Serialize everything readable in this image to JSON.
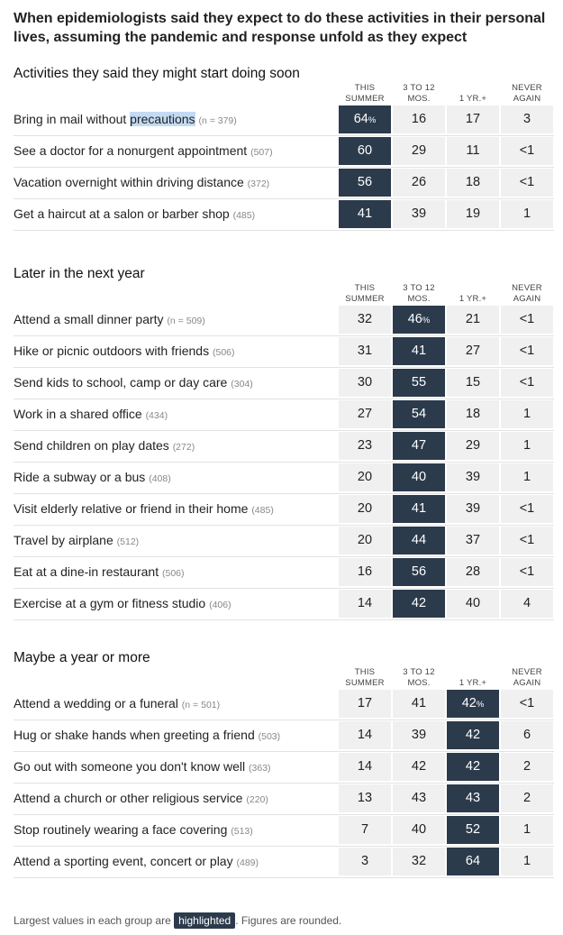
{
  "title": "When epidemiologists said they expect to do these activities in their personal lives, assuming the pandemic and response unfold as they expect",
  "columns": [
    {
      "line1": "THIS",
      "line2": "SUMMER"
    },
    {
      "line1": "3 TO 12",
      "line2": "MOS."
    },
    {
      "line1": "",
      "line2": "1 YR.+"
    },
    {
      "line1": "NEVER",
      "line2": "AGAIN"
    }
  ],
  "colors": {
    "highlight": "#2c3b4c",
    "cell": "#f0f0f0",
    "selection": "#c4daf3"
  },
  "chart_data": {
    "type": "table",
    "title": "When epidemiologists said they expect to do these activities in their personal lives, assuming the pandemic and response unfold as they expect",
    "groups": [
      {
        "name": "Activities they said they might start doing soon",
        "highlight_col": 0,
        "rows": [
          {
            "pre": "Bring in mail without ",
            "sel": "precautions",
            "n": "(n = 379)",
            "values": [
              "64",
              "16",
              "17",
              "3"
            ],
            "pct": "%"
          },
          {
            "pre": "See a doctor for a nonurgent appointment",
            "sel": "",
            "n": "(507)",
            "values": [
              "60",
              "29",
              "11",
              "<1"
            ],
            "pct": ""
          },
          {
            "pre": "Vacation overnight within driving distance",
            "sel": "",
            "n": "(372)",
            "values": [
              "56",
              "26",
              "18",
              "<1"
            ],
            "pct": ""
          },
          {
            "pre": "Get a haircut at a salon or barber shop",
            "sel": "",
            "n": "(485)",
            "values": [
              "41",
              "39",
              "19",
              "1"
            ],
            "pct": ""
          }
        ]
      },
      {
        "name": "Later in the next year",
        "highlight_col": 1,
        "rows": [
          {
            "pre": "Attend a small dinner party",
            "sel": "",
            "n": "(n = 509)",
            "values": [
              "32",
              "46",
              "21",
              "<1"
            ],
            "pct": "%"
          },
          {
            "pre": "Hike or picnic outdoors with friends",
            "sel": "",
            "n": "(506)",
            "values": [
              "31",
              "41",
              "27",
              "<1"
            ],
            "pct": ""
          },
          {
            "pre": "Send kids to school, camp or day care",
            "sel": "",
            "n": "(304)",
            "values": [
              "30",
              "55",
              "15",
              "<1"
            ],
            "pct": ""
          },
          {
            "pre": "Work in a shared office",
            "sel": "",
            "n": "(434)",
            "values": [
              "27",
              "54",
              "18",
              "1"
            ],
            "pct": ""
          },
          {
            "pre": "Send children on play dates",
            "sel": "",
            "n": "(272)",
            "values": [
              "23",
              "47",
              "29",
              "1"
            ],
            "pct": ""
          },
          {
            "pre": "Ride a subway or a bus",
            "sel": "",
            "n": "(408)",
            "values": [
              "20",
              "40",
              "39",
              "1"
            ],
            "pct": ""
          },
          {
            "pre": "Visit elderly relative or friend in their home",
            "sel": "",
            "n": "(485)",
            "values": [
              "20",
              "41",
              "39",
              "<1"
            ],
            "pct": ""
          },
          {
            "pre": "Travel by airplane",
            "sel": "",
            "n": "(512)",
            "values": [
              "20",
              "44",
              "37",
              "<1"
            ],
            "pct": ""
          },
          {
            "pre": "Eat at a dine-in restaurant",
            "sel": "",
            "n": "(506)",
            "values": [
              "16",
              "56",
              "28",
              "<1"
            ],
            "pct": ""
          },
          {
            "pre": "Exercise at a gym or fitness studio",
            "sel": "",
            "n": "(406)",
            "values": [
              "14",
              "42",
              "40",
              "4"
            ],
            "pct": ""
          }
        ]
      },
      {
        "name": "Maybe a year or more",
        "highlight_col": 2,
        "rows": [
          {
            "pre": "Attend a wedding or a funeral",
            "sel": "",
            "n": "(n = 501)",
            "values": [
              "17",
              "41",
              "42",
              "<1"
            ],
            "pct": "%"
          },
          {
            "pre": "Hug or shake hands when greeting a friend",
            "sel": "",
            "n": "(503)",
            "values": [
              "14",
              "39",
              "42",
              "6"
            ],
            "pct": ""
          },
          {
            "pre": "Go out with someone you don't know well",
            "sel": "",
            "n": "(363)",
            "values": [
              "14",
              "42",
              "42",
              "2"
            ],
            "pct": ""
          },
          {
            "pre": "Attend a church or other religious service",
            "sel": "",
            "n": "(220)",
            "values": [
              "13",
              "43",
              "43",
              "2"
            ],
            "pct": ""
          },
          {
            "pre": "Stop routinely wearing a face covering",
            "sel": "",
            "n": "(513)",
            "values": [
              "7",
              "40",
              "52",
              "1"
            ],
            "pct": ""
          },
          {
            "pre": "Attend a sporting event, concert or play",
            "sel": "",
            "n": "(489)",
            "values": [
              "3",
              "32",
              "64",
              "1"
            ],
            "pct": ""
          }
        ]
      }
    ]
  },
  "footnote": {
    "before": "Largest values in each group are ",
    "badge": "highlighted",
    "after": ". Figures are rounded."
  }
}
